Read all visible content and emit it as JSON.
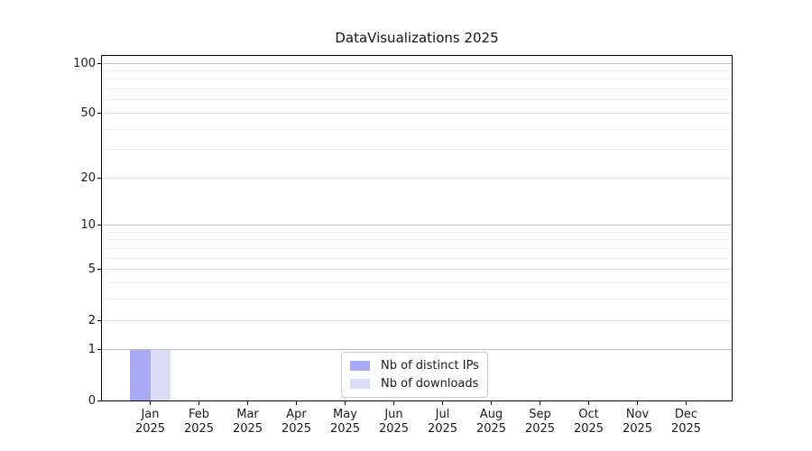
{
  "chart_data": {
    "type": "bar",
    "title": "DataVisualizations 2025",
    "x_axis": {
      "categories": [
        {
          "line1": "Jan",
          "line2": "2025"
        },
        {
          "line1": "Feb",
          "line2": "2025"
        },
        {
          "line1": "Mar",
          "line2": "2025"
        },
        {
          "line1": "Apr",
          "line2": "2025"
        },
        {
          "line1": "May",
          "line2": "2025"
        },
        {
          "line1": "Jun",
          "line2": "2025"
        },
        {
          "line1": "Jul",
          "line2": "2025"
        },
        {
          "line1": "Aug",
          "line2": "2025"
        },
        {
          "line1": "Sep",
          "line2": "2025"
        },
        {
          "line1": "Oct",
          "line2": "2025"
        },
        {
          "line1": "Nov",
          "line2": "2025"
        },
        {
          "line1": "Dec",
          "line2": "2025"
        }
      ]
    },
    "y_axis": {
      "scale": "log1p",
      "ticks": [
        0,
        1,
        2,
        5,
        10,
        20,
        50,
        100
      ],
      "decade_gridlines": [
        1,
        10,
        100
      ],
      "labeled_gridlines": [
        2,
        5,
        20,
        50
      ],
      "minor_gridlines": [
        3,
        4,
        6,
        7,
        8,
        9,
        30,
        40,
        60,
        70,
        80,
        90
      ],
      "ylim": [
        0,
        113
      ]
    },
    "series": [
      {
        "name": "Nb of distinct IPs",
        "color": "#a9a9f4",
        "values": [
          1,
          0,
          0,
          0,
          0,
          0,
          0,
          0,
          0,
          0,
          0,
          0
        ]
      },
      {
        "name": "Nb of downloads",
        "color": "#dcdcf9",
        "values": [
          1,
          0,
          0,
          0,
          0,
          0,
          0,
          0,
          0,
          0,
          0,
          0
        ]
      }
    ],
    "legend": {
      "position": "lower-center"
    },
    "grid": {
      "major_color": "#bfbfbf",
      "labeled_color": "#e3e3e3",
      "minor_color": "#efefef"
    }
  }
}
